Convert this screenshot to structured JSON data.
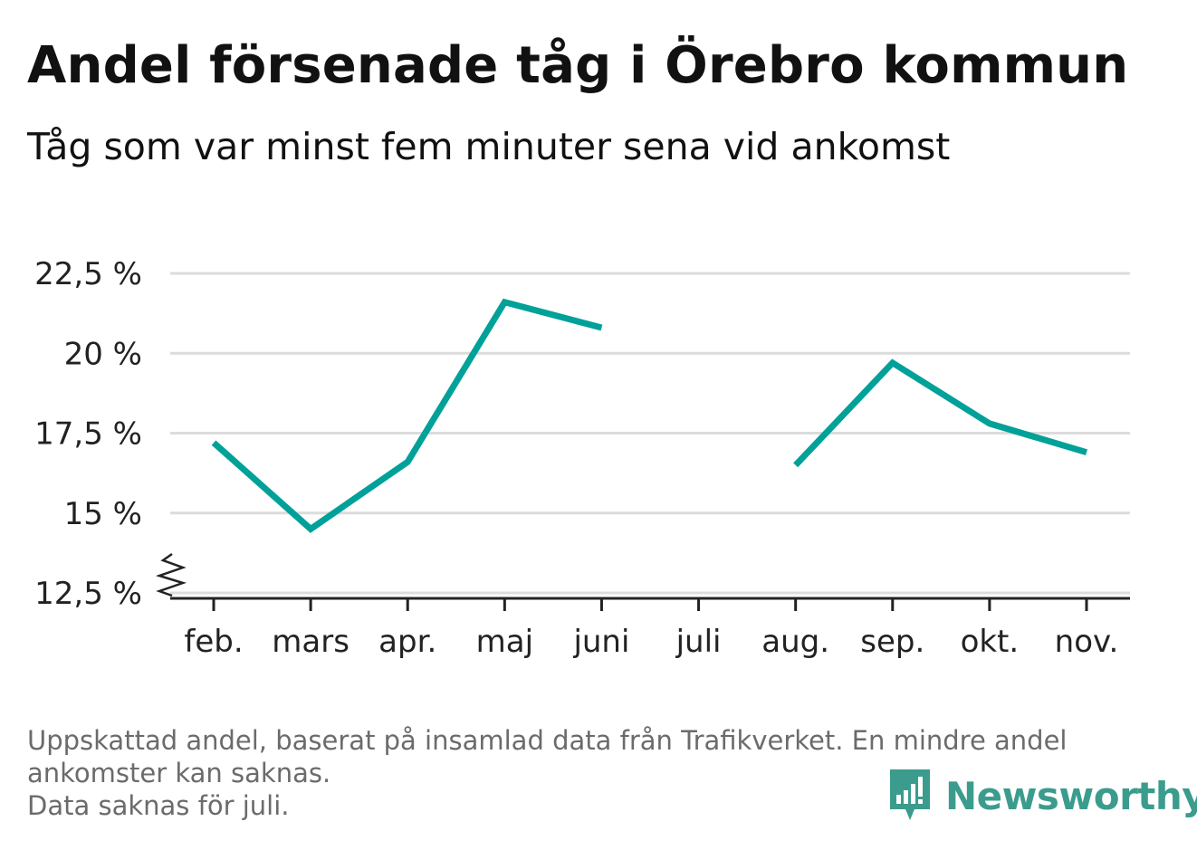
{
  "header": {
    "title": "Andel försenade tåg i Örebro kommun",
    "subtitle": "Tåg som var minst fem minuter sena vid ankomst"
  },
  "chart_data": {
    "type": "line",
    "categories": [
      "feb.",
      "mars",
      "apr.",
      "maj",
      "juni",
      "juli",
      "aug.",
      "sep.",
      "okt.",
      "nov."
    ],
    "series": [
      {
        "values": [
          17.2,
          14.5,
          16.6,
          21.6,
          20.8,
          null,
          16.5,
          19.7,
          17.8,
          16.9
        ]
      }
    ],
    "ylim": [
      12.5,
      22.5
    ],
    "y_ticks": [
      12.5,
      15,
      17.5,
      20,
      22.5
    ],
    "y_tick_labels": [
      "12,5 %",
      "15 %",
      "17,5 %",
      "20 %",
      "22,5 %"
    ],
    "grid": true,
    "axis_break": true,
    "line_color": "#00a198",
    "grid_color": "#dcdcdc"
  },
  "footnote": {
    "lines": [
      "Uppskattad andel, baserat på insamlad data från Trafikverket. En mindre andel",
      "ankomster kan saknas.",
      "Data saknas för juli."
    ]
  },
  "brand": {
    "name": "Newsworthy",
    "color": "#3b9c8d",
    "icon": "newsworthy-logo-icon"
  }
}
